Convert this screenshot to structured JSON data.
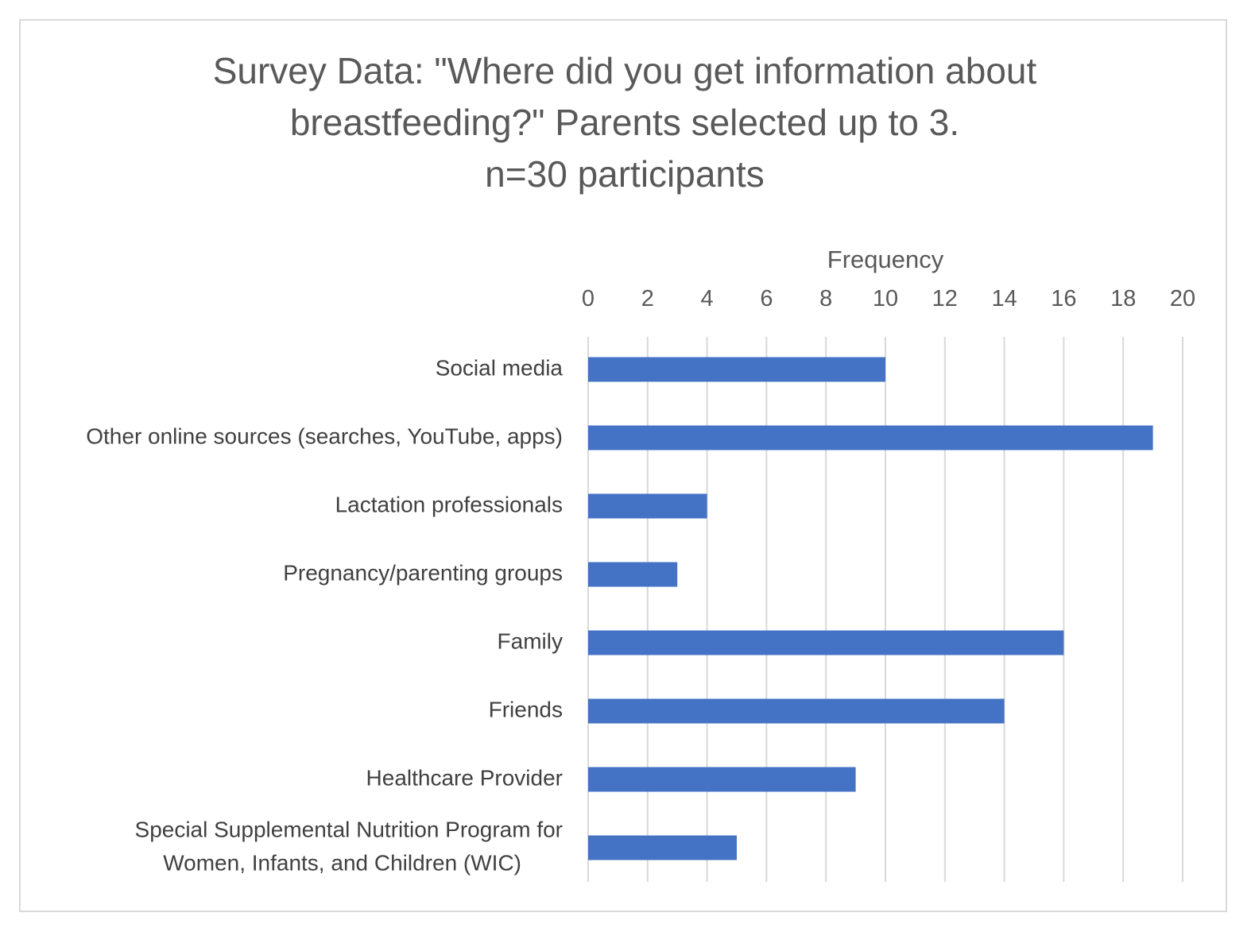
{
  "chart_data": {
    "type": "bar",
    "orientation": "horizontal",
    "title_lines": [
      "Survey Data: \"Where did you get information about",
      "breastfeeding?\" Parents selected up to 3.",
      "n=30 participants"
    ],
    "xlabel": "Frequency",
    "xaxis_position": "top",
    "xlim": [
      0,
      20
    ],
    "xticks": [
      "0",
      "2",
      "4",
      "6",
      "8",
      "10",
      "12",
      "14",
      "16",
      "18",
      "20"
    ],
    "grid": true,
    "legend": false,
    "bar_color": "#4472c4",
    "categories": [
      [
        "Social media"
      ],
      [
        "Other online sources (searches, YouTube, apps)"
      ],
      [
        "Lactation professionals"
      ],
      [
        "Pregnancy/parenting groups"
      ],
      [
        "Family"
      ],
      [
        "Friends"
      ],
      [
        "Healthcare Provider"
      ],
      [
        "Special Supplemental Nutrition Program for",
        "Women, Infants, and Children (WIC)"
      ]
    ],
    "values": [
      10,
      19,
      4,
      3,
      16,
      14,
      9,
      5
    ]
  }
}
